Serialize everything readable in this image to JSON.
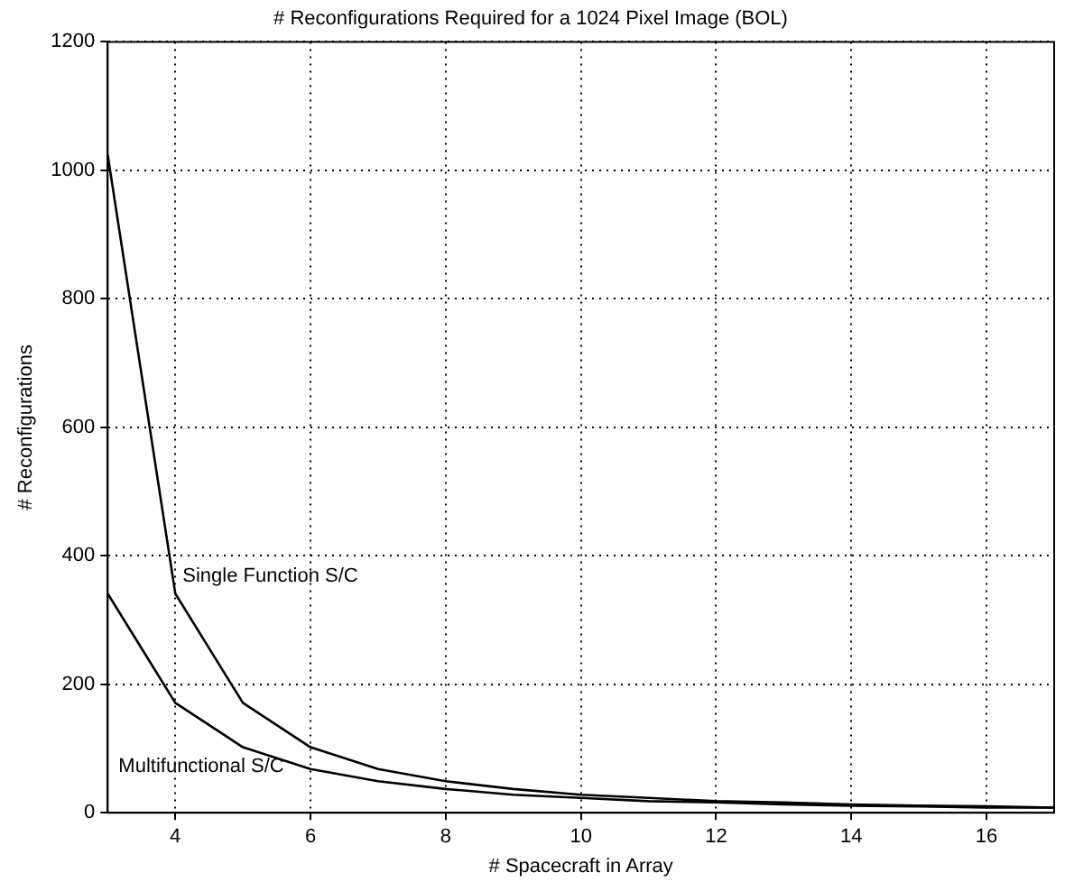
{
  "chart_data": {
    "type": "line",
    "title": "# Reconfigurations Required for a 1024 Pixel Image (BOL)",
    "xlabel": "# Spacecraft in Array",
    "ylabel": "# Reconfigurations",
    "x": [
      3,
      4,
      5,
      6,
      7,
      8,
      9,
      10,
      11,
      12,
      13,
      14,
      15,
      16,
      17
    ],
    "series": [
      {
        "name": "Single Function S/C",
        "color": "#000000",
        "values": [
          1024,
          341,
          171,
          102,
          68,
          49,
          37,
          28,
          23,
          18,
          16,
          13,
          11,
          10,
          8
        ]
      },
      {
        "name": "Multifunctional S/C",
        "color": "#000000",
        "values": [
          341,
          171,
          102,
          68,
          49,
          37,
          28,
          23,
          18,
          16,
          13,
          11,
          10,
          8,
          8
        ]
      }
    ],
    "xlim": [
      3,
      17
    ],
    "xticks": [
      4,
      6,
      8,
      10,
      12,
      14,
      16
    ],
    "ylim": [
      0,
      1200
    ],
    "yticks": [
      0,
      200,
      400,
      600,
      800,
      1000,
      1200
    ],
    "grid": true,
    "legend": false,
    "marker": "none",
    "line_style": "solid"
  }
}
